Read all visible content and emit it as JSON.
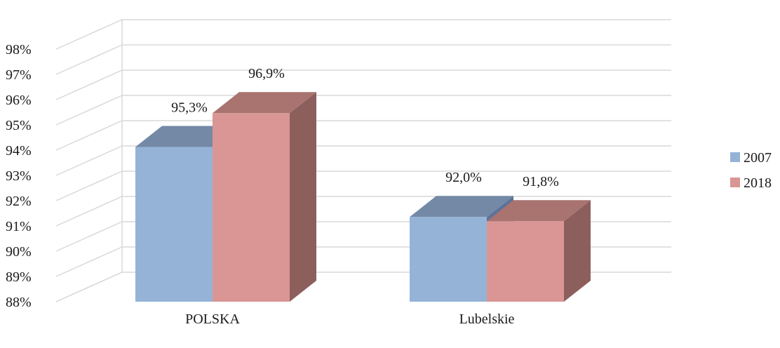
{
  "colors": {
    "series_2007": {
      "front": "#95b3d7",
      "top": "#7489a6",
      "side": "#5b7398"
    },
    "series_2018": {
      "front": "#d99694",
      "top": "#a9736f",
      "side": "#8c5f5d"
    },
    "grid": "#d9d9d9"
  },
  "chart_data": {
    "type": "bar",
    "style": "3d-clustered-column",
    "categories": [
      "POLSKA",
      "Lubelskie"
    ],
    "series": [
      {
        "name": "2007",
        "values": [
          95.3,
          92.0
        ],
        "labels": [
          "95,3%",
          "92,0%"
        ]
      },
      {
        "name": "2018",
        "values": [
          96.9,
          91.8
        ],
        "labels": [
          "96,9%",
          "91,8%"
        ]
      }
    ],
    "yticks": [
      "88%",
      "89%",
      "90%",
      "91%",
      "92%",
      "93%",
      "94%",
      "95%",
      "96%",
      "97%",
      "98%"
    ],
    "ylim": [
      88,
      98
    ],
    "grid": true,
    "legend_position": "right"
  }
}
